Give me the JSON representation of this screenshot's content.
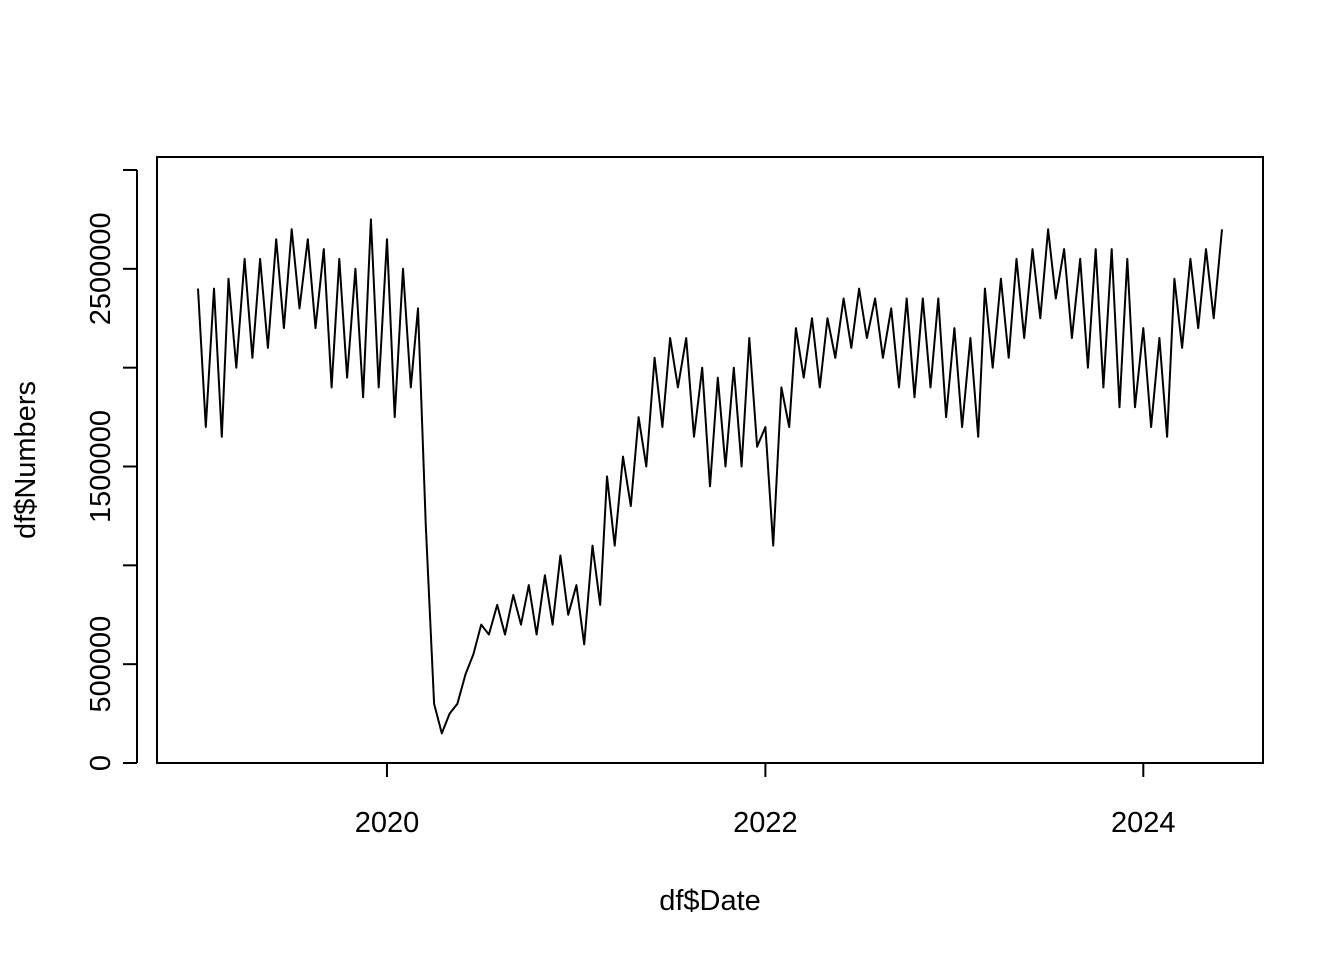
{
  "chart_data": {
    "type": "line",
    "title": "",
    "xlabel": "df$Date",
    "ylabel": "df$Numbers",
    "xlim": [
      "2019-01-01",
      "2024-06-01"
    ],
    "ylim": [
      0,
      3000000
    ],
    "x_ticks": [
      {
        "value": "2020-01-01",
        "label": "2020"
      },
      {
        "value": "2022-01-01",
        "label": "2022"
      },
      {
        "value": "2024-01-01",
        "label": "2024"
      }
    ],
    "y_ticks": [
      {
        "value": 0,
        "label": "0"
      },
      {
        "value": 500000,
        "label": "500000"
      },
      {
        "value": 1000000,
        "label": ""
      },
      {
        "value": 1500000,
        "label": "1500000"
      },
      {
        "value": 2000000,
        "label": ""
      },
      {
        "value": 2500000,
        "label": "2500000"
      },
      {
        "value": 3000000,
        "label": ""
      }
    ],
    "grid": false,
    "legend": "none",
    "line_color": "#000000",
    "series": [
      {
        "x": [
          "2019-01-01",
          "2019-01-16",
          "2019-02-01",
          "2019-02-16",
          "2019-03-01",
          "2019-03-16",
          "2019-04-01",
          "2019-04-16",
          "2019-05-01",
          "2019-05-16",
          "2019-06-01",
          "2019-06-16",
          "2019-07-01",
          "2019-07-16",
          "2019-08-01",
          "2019-08-16",
          "2019-09-01",
          "2019-09-16",
          "2019-10-01",
          "2019-10-16",
          "2019-11-01",
          "2019-11-16",
          "2019-12-01",
          "2019-12-16",
          "2020-01-01",
          "2020-01-16",
          "2020-02-01",
          "2020-02-16",
          "2020-03-01",
          "2020-03-16",
          "2020-04-01",
          "2020-04-16",
          "2020-05-01",
          "2020-05-16",
          "2020-06-01",
          "2020-06-16",
          "2020-07-01",
          "2020-07-16",
          "2020-08-01",
          "2020-08-16",
          "2020-09-01",
          "2020-09-16",
          "2020-10-01",
          "2020-10-16",
          "2020-11-01",
          "2020-11-16",
          "2020-12-01",
          "2020-12-16",
          "2021-01-01",
          "2021-01-16",
          "2021-02-01",
          "2021-02-16",
          "2021-03-01",
          "2021-03-16",
          "2021-04-01",
          "2021-04-16",
          "2021-05-01",
          "2021-05-16",
          "2021-06-01",
          "2021-06-16",
          "2021-07-01",
          "2021-07-16",
          "2021-08-01",
          "2021-08-16",
          "2021-09-01",
          "2021-09-16",
          "2021-10-01",
          "2021-10-16",
          "2021-11-01",
          "2021-11-16",
          "2021-12-01",
          "2021-12-16",
          "2022-01-01",
          "2022-01-16",
          "2022-02-01",
          "2022-02-16",
          "2022-03-01",
          "2022-03-16",
          "2022-04-01",
          "2022-04-16",
          "2022-05-01",
          "2022-05-16",
          "2022-06-01",
          "2022-06-16",
          "2022-07-01",
          "2022-07-16",
          "2022-08-01",
          "2022-08-16",
          "2022-09-01",
          "2022-09-16",
          "2022-10-01",
          "2022-10-16",
          "2022-11-01",
          "2022-11-16",
          "2022-12-01",
          "2022-12-16",
          "2023-01-01",
          "2023-01-16",
          "2023-02-01",
          "2023-02-16",
          "2023-03-01",
          "2023-03-16",
          "2023-04-01",
          "2023-04-16",
          "2023-05-01",
          "2023-05-16",
          "2023-06-01",
          "2023-06-16",
          "2023-07-01",
          "2023-07-16",
          "2023-08-01",
          "2023-08-16",
          "2023-09-01",
          "2023-09-16",
          "2023-10-01",
          "2023-10-16",
          "2023-11-01",
          "2023-11-16",
          "2023-12-01",
          "2023-12-16",
          "2024-01-01",
          "2024-01-16",
          "2024-02-01",
          "2024-02-16",
          "2024-03-01",
          "2024-03-16",
          "2024-04-01",
          "2024-04-16",
          "2024-05-01",
          "2024-05-16",
          "2024-06-01"
        ],
        "values": [
          2400000,
          1700000,
          2400000,
          1650000,
          2450000,
          2000000,
          2550000,
          2050000,
          2550000,
          2100000,
          2650000,
          2200000,
          2700000,
          2300000,
          2650000,
          2200000,
          2600000,
          1900000,
          2550000,
          1950000,
          2500000,
          1850000,
          2750000,
          1900000,
          2650000,
          1750000,
          2500000,
          1900000,
          2300000,
          1200000,
          300000,
          150000,
          250000,
          300000,
          450000,
          550000,
          700000,
          650000,
          800000,
          650000,
          850000,
          700000,
          900000,
          650000,
          950000,
          700000,
          1050000,
          750000,
          900000,
          600000,
          1100000,
          800000,
          1450000,
          1100000,
          1550000,
          1300000,
          1750000,
          1500000,
          2050000,
          1700000,
          2150000,
          1900000,
          2150000,
          1650000,
          2000000,
          1400000,
          1950000,
          1500000,
          2000000,
          1500000,
          2150000,
          1600000,
          1700000,
          1100000,
          1900000,
          1700000,
          2200000,
          1950000,
          2250000,
          1900000,
          2250000,
          2050000,
          2350000,
          2100000,
          2400000,
          2150000,
          2350000,
          2050000,
          2300000,
          1900000,
          2350000,
          1850000,
          2350000,
          1900000,
          2350000,
          1750000,
          2200000,
          1700000,
          2150000,
          1650000,
          2400000,
          2000000,
          2450000,
          2050000,
          2550000,
          2150000,
          2600000,
          2250000,
          2700000,
          2350000,
          2600000,
          2150000,
          2550000,
          2000000,
          2600000,
          1900000,
          2600000,
          1800000,
          2550000,
          1800000,
          2200000,
          1700000,
          2150000,
          1650000,
          2450000,
          2100000,
          2550000,
          2200000,
          2600000,
          2250000,
          2700000
        ]
      }
    ]
  }
}
